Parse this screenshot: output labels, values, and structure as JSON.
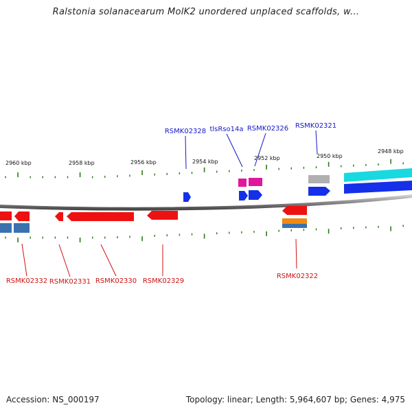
{
  "title": "Ralstonia solanacearum MolK2 unordered unplaced scaffolds, w...",
  "footer": {
    "accession": "Accession: NS_000197",
    "summary": "Topology: linear; Length: 5,964,607 bp; Genes: 4,975"
  },
  "colors": {
    "tick": "#2a7a16",
    "backbone": "#777777",
    "label_forward": "#1515c8",
    "label_reverse": "#d01010",
    "gene_red": "#ee1111",
    "gene_blue": "#1530e8",
    "gene_magenta": "#e0179c",
    "gene_steel": "#3a72b0",
    "gene_orange": "#f08a10",
    "gene_cyan": "#18d8e0",
    "gene_gray": "#b0b0b0"
  },
  "scale_labels": [
    "2960 kbp",
    "2958 kbp",
    "2956 kbp",
    "2954 kbp",
    "2952 kbp",
    "2950 kbp",
    "2948 kbp"
  ],
  "forward_gene_labels": [
    "RSMK02328",
    "tlsRso14a",
    "RSMK02326",
    "RSMK02321"
  ],
  "reverse_gene_labels": [
    "RSMK02332",
    "RSMK02331",
    "RSMK02330",
    "RSMK02329",
    "RSMK02322"
  ]
}
